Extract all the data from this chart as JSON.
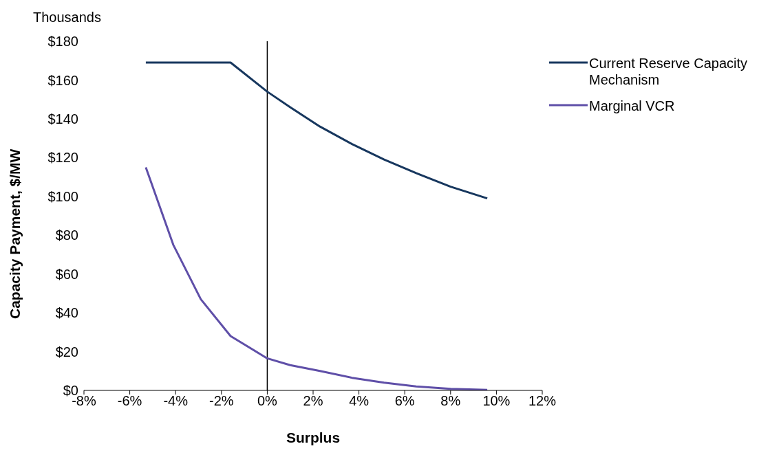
{
  "chart_data": {
    "type": "line",
    "xlabel": "Surplus",
    "ylabel": "Capacity Payment, $/MW",
    "annotations": [
      "Thousands"
    ],
    "xlim": [
      -8,
      12
    ],
    "xticks": [
      {
        "value": -8,
        "label": "-8%"
      },
      {
        "value": -6,
        "label": "-6%"
      },
      {
        "value": -4,
        "label": "-4%"
      },
      {
        "value": -2,
        "label": "-2%"
      },
      {
        "value": 0,
        "label": "0%"
      },
      {
        "value": 2,
        "label": "2%"
      },
      {
        "value": 4,
        "label": "4%"
      },
      {
        "value": 6,
        "label": "6%"
      },
      {
        "value": 8,
        "label": "8%"
      },
      {
        "value": 10,
        "label": "10%"
      },
      {
        "value": 12,
        "label": "12%"
      }
    ],
    "ylim": [
      0,
      180
    ],
    "yticks": [
      {
        "value": 0,
        "label": "$0"
      },
      {
        "value": 20,
        "label": "$20"
      },
      {
        "value": 40,
        "label": "$40"
      },
      {
        "value": 60,
        "label": "$60"
      },
      {
        "value": 80,
        "label": "$80"
      },
      {
        "value": 100,
        "label": "$100"
      },
      {
        "value": 120,
        "label": "$120"
      },
      {
        "value": 140,
        "label": "$140"
      },
      {
        "value": 160,
        "label": "$160"
      },
      {
        "value": 180,
        "label": "$180"
      }
    ],
    "x": [
      -5.3,
      -4.1,
      -2.9,
      -1.6,
      0,
      1.0,
      2.3,
      3.7,
      5.1,
      6.5,
      8.0,
      9.6
    ],
    "series": [
      {
        "name": "Current Reserve Capacity Mechanism",
        "color": "#17375e",
        "values": [
          169,
          169,
          169,
          169,
          154,
          146,
          136,
          127,
          119,
          112,
          105,
          99
        ]
      },
      {
        "name": "Marginal VCR",
        "color": "#5f4fa8",
        "values": [
          115,
          75,
          47,
          28,
          16.5,
          13,
          10,
          6.5,
          4,
          2,
          0.8,
          0.3
        ]
      }
    ],
    "ref_lines": [
      {
        "axis": "x",
        "value": 0,
        "color": "#000000"
      }
    ],
    "grid": false,
    "legend": "top right",
    "marker": "none",
    "line_style": "solid"
  }
}
